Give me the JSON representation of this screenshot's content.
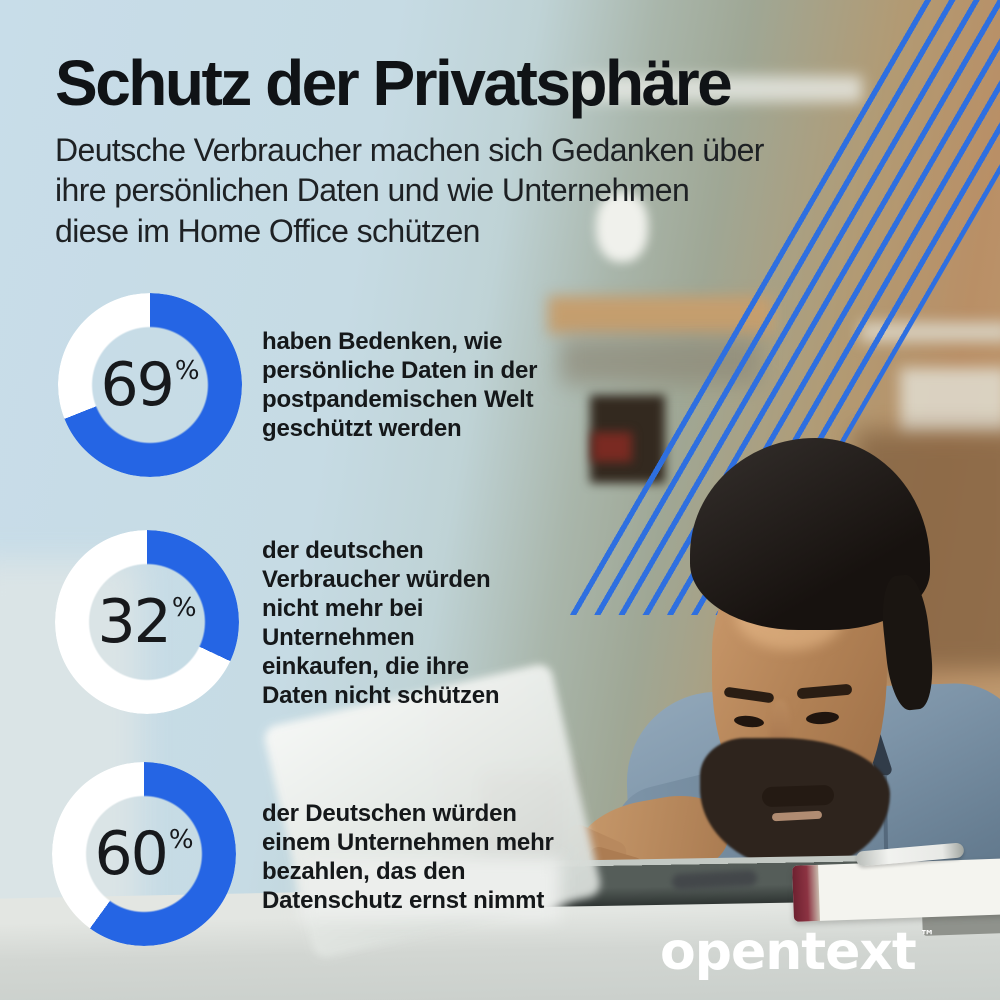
{
  "header": {
    "title": "Schutz der Privatsphäre",
    "subtitle": "Deutsche Verbraucher machen sich Gedanken über\nihre persönlichen Daten und wie Unternehmen\ndiese im Home Office schützen"
  },
  "stats": [
    {
      "value": "69",
      "unit": "%",
      "text": "haben Bedenken, wie\npersönliche Daten in der\npostpandemischen Welt\ngeschützt werden"
    },
    {
      "value": "32",
      "unit": "%",
      "text": "der deutschen\nVerbraucher würden\nnicht mehr bei\nUnternehmen\neinkaufen, die ihre\nDaten nicht schützen"
    },
    {
      "value": "60",
      "unit": "%",
      "text": "der Deutschen würden\neinem Unternehmen mehr\nbezahlen, das den\nDatenschutz ernst nimmt"
    }
  ],
  "chart_data": {
    "type": "pie",
    "subtype": "donut",
    "unit": "%",
    "start_angle": "top",
    "direction": "clockwise",
    "filled_color": "#2565e4",
    "empty_color": "#ffffff",
    "series": [
      {
        "name": "haben Bedenken, wie persönliche Daten in der postpandemischen Welt geschützt werden",
        "value": 69
      },
      {
        "name": "der deutschen Verbraucher würden nicht mehr bei Unternehmen einkaufen, die ihre Daten nicht schützen",
        "value": 32
      },
      {
        "name": "der Deutschen würden einem Unternehmen mehr bezahlen, das den Datenschutz ernst nimmt",
        "value": 60
      }
    ]
  },
  "branding": {
    "logo_text": "opentext",
    "trademark": "™"
  },
  "colors": {
    "accent_blue": "#2565e4",
    "stripe_blue": "#2e6fe0",
    "title_text": "#101316",
    "body_text": "#15181a",
    "donut_empty": "#ffffff",
    "logo_white": "#ffffff"
  }
}
